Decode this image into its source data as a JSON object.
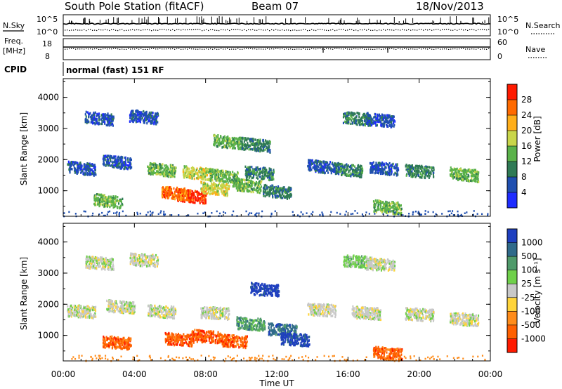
{
  "header": {
    "station": "South Pole Station (fitACF)",
    "beam": "Beam 07",
    "date": "18/Nov/2013"
  },
  "top_panels": {
    "nsky_label": "N.Sky",
    "nsearch_label": "N.Search",
    "nsky_ticks": [
      "10^5",
      "10^0"
    ],
    "nsearch_ticks": [
      "10^5",
      "10^0"
    ],
    "freq_label": "Freq.",
    "freq_unit": "[MHz]",
    "freq_ticks": [
      "18",
      "8"
    ],
    "nave_label": "Nave",
    "nave_ticks": [
      "60",
      "0"
    ],
    "cpid_label": "CPID",
    "cpid_text": "normal (fast) 151 RF"
  },
  "x_axis": {
    "label": "Time UT",
    "ticks": [
      "00:00",
      "04:00",
      "08:00",
      "12:00",
      "16:00",
      "20:00",
      "00:00"
    ]
  },
  "chart_data": [
    {
      "type": "heatmap",
      "panel": "power",
      "ylabel": "Slant Range [km]",
      "y_ticks": [
        1000,
        2000,
        3000,
        4000
      ],
      "ylim": [
        180,
        4600
      ],
      "xlim_hours": [
        0,
        24
      ],
      "colorbar_label": "Power [dB]",
      "colorbar_ticks": [
        "4",
        "8",
        "12",
        "16",
        "20",
        "24",
        "28"
      ],
      "colors": [
        "#1e2cff",
        "#1f4fb0",
        "#2f7a55",
        "#5ab24a",
        "#c9d64a",
        "#ffae1a",
        "#ff6a00",
        "#ff1a00"
      ],
      "blobs": [
        {
          "t": 2.0,
          "r": 3350,
          "cat": 1
        },
        {
          "t": 4.5,
          "r": 3400,
          "cat": 1
        },
        {
          "t": 16.5,
          "r": 3350,
          "cat": 2
        },
        {
          "t": 17.8,
          "r": 3300,
          "cat": 1
        },
        {
          "t": 1.0,
          "r": 1750,
          "cat": 1
        },
        {
          "t": 3.0,
          "r": 1950,
          "cat": 1
        },
        {
          "t": 5.5,
          "r": 1700,
          "cat": 3
        },
        {
          "t": 7.5,
          "r": 1600,
          "cat": 4
        },
        {
          "t": 9.0,
          "r": 1500,
          "cat": 3
        },
        {
          "t": 11.0,
          "r": 1600,
          "cat": 2
        },
        {
          "t": 14.5,
          "r": 1800,
          "cat": 1
        },
        {
          "t": 16.0,
          "r": 1700,
          "cat": 2
        },
        {
          "t": 18.0,
          "r": 1750,
          "cat": 1
        },
        {
          "t": 20.0,
          "r": 1650,
          "cat": 2
        },
        {
          "t": 22.5,
          "r": 1550,
          "cat": 3
        },
        {
          "t": 7.2,
          "r": 850,
          "cat": 7
        },
        {
          "t": 6.3,
          "r": 950,
          "cat": 6
        },
        {
          "t": 8.5,
          "r": 1100,
          "cat": 4
        },
        {
          "t": 2.5,
          "r": 700,
          "cat": 3
        },
        {
          "t": 10.3,
          "r": 1200,
          "cat": 3
        },
        {
          "t": 12.0,
          "r": 1000,
          "cat": 2
        },
        {
          "t": 9.2,
          "r": 2600,
          "cat": 3
        },
        {
          "t": 10.8,
          "r": 2500,
          "cat": 2
        },
        {
          "t": 18.2,
          "r": 500,
          "cat": 3
        }
      ]
    },
    {
      "type": "heatmap",
      "panel": "velocity",
      "ylabel": "Slant Range [km]",
      "y_ticks": [
        1000,
        2000,
        3000,
        4000
      ],
      "ylim": [
        180,
        4600
      ],
      "xlim_hours": [
        0,
        24
      ],
      "colorbar_label": "Velocity [m s⁻¹]",
      "colorbar_ticks": [
        "1000",
        "500",
        "100",
        "25",
        "-25",
        "-100",
        "-500",
        "-1000"
      ],
      "colors": [
        "#1e3fbf",
        "#2f6a8a",
        "#4f9a6a",
        "#6fd04a",
        "#c8c8c8",
        "#ffd43a",
        "#ff8c1a",
        "#ff6000",
        "#ff1a00"
      ],
      "blobs": [
        {
          "t": 2.0,
          "r": 3350,
          "cat": 4
        },
        {
          "t": 4.5,
          "r": 3450,
          "cat": 4
        },
        {
          "t": 16.5,
          "r": 3400,
          "cat": 3
        },
        {
          "t": 17.8,
          "r": 3300,
          "cat": 4
        },
        {
          "t": 1.0,
          "r": 1800,
          "cat": 4
        },
        {
          "t": 3.2,
          "r": 1950,
          "cat": 4
        },
        {
          "t": 5.5,
          "r": 1800,
          "cat": 4
        },
        {
          "t": 8.5,
          "r": 1750,
          "cat": 4
        },
        {
          "t": 14.5,
          "r": 1850,
          "cat": 4
        },
        {
          "t": 17.0,
          "r": 1750,
          "cat": 4
        },
        {
          "t": 20.0,
          "r": 1700,
          "cat": 4
        },
        {
          "t": 22.5,
          "r": 1550,
          "cat": 4
        },
        {
          "t": 6.5,
          "r": 900,
          "cat": 7
        },
        {
          "t": 8.0,
          "r": 1000,
          "cat": 7
        },
        {
          "t": 9.5,
          "r": 850,
          "cat": 7
        },
        {
          "t": 3.0,
          "r": 800,
          "cat": 7
        },
        {
          "t": 11.3,
          "r": 2500,
          "cat": 0
        },
        {
          "t": 12.3,
          "r": 1200,
          "cat": 1
        },
        {
          "t": 13.0,
          "r": 900,
          "cat": 0
        },
        {
          "t": 10.5,
          "r": 1400,
          "cat": 2
        },
        {
          "t": 18.2,
          "r": 450,
          "cat": 7
        }
      ]
    }
  ]
}
